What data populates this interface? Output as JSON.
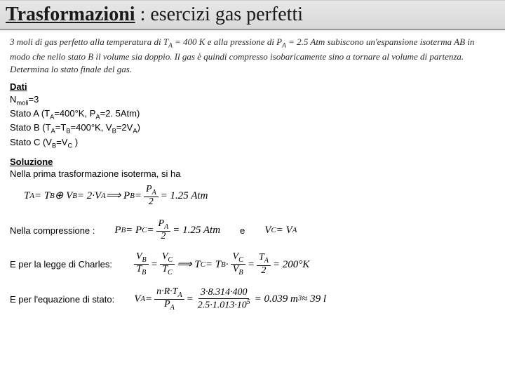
{
  "title": {
    "bold": "Trasformazioni",
    "rest": " : esercizi gas perfetti"
  },
  "problem": {
    "line1": "3 moli di gas perfetto alla temperatura di T",
    "sub1": "A",
    "line2": " = 400 K e alla pressione di P",
    "sub2": "A",
    "line3": " = 2.5 Atm subiscono un'espansione isoterma AB in modo che nello stato B il volume sia doppio. Il gas è quindi compresso isobaricamente sino a tornare al volume di partenza. Determina lo stato finale del gas."
  },
  "dati": {
    "label": "Dati",
    "nmoli_pre": "N",
    "nmoli_sub": "moli",
    "nmoli_val": "=3",
    "statoA_pre": "Stato A (T",
    "statoA_sub1": "A",
    "statoA_mid": "=400°K, P",
    "statoA_sub2": "A",
    "statoA_end": "=2. 5Atm)",
    "statoB_pre": "Stato B (T",
    "statoB_sub1": "A",
    "statoB_mid1": "=T",
    "statoB_sub2": "B",
    "statoB_mid2": "=400°K, V",
    "statoB_sub3": "B",
    "statoB_mid3": "=2V",
    "statoB_sub4": "A",
    "statoB_end": ")",
    "statoC_pre": "Stato C (V",
    "statoC_sub1": "B",
    "statoC_mid": "=V",
    "statoC_sub2": "C",
    "statoC_end": " )"
  },
  "soluzione": {
    "label": "Soluzione",
    "line1": "Nella prima trasformazione isoterma, si ha",
    "eq1_a": "T",
    "eq1_a_sub": "A",
    "eq1_b": " = T",
    "eq1_b_sub": "B",
    "eq1_c": "  ⊕  V",
    "eq1_c_sub": "B",
    "eq1_d": " = 2·V",
    "eq1_d_sub": "A",
    "eq1_arrow": "  ⟹  P",
    "eq1_e_sub": "B",
    "eq1_eq": " = ",
    "eq1_num": "P",
    "eq1_num_sub": "A",
    "eq1_den": "2",
    "eq1_res": " = 1.25 Atm",
    "compressione": "Nella compressione :",
    "eq2_a": "P",
    "eq2_a_sub": "B",
    "eq2_b": " = P",
    "eq2_b_sub": "C",
    "eq2_c": " = ",
    "eq2_num": "P",
    "eq2_num_sub": "A",
    "eq2_den": "2",
    "eq2_res": " = 1.25 Atm",
    "e_label": "e",
    "eq3_a": "V",
    "eq3_a_sub": "C",
    "eq3_b": " = V",
    "eq3_b_sub": "A",
    "charles": "E per la legge di Charles:",
    "eq4_num1": "V",
    "eq4_num1_sub": "B",
    "eq4_den1": "T",
    "eq4_den1_sub": "B",
    "eq4_eq1": " = ",
    "eq4_num2": "V",
    "eq4_num2_sub": "C",
    "eq4_den2": "T",
    "eq4_den2_sub": "C",
    "eq4_arrow": "  ⟹  T",
    "eq4_tc_sub": "C",
    "eq4_mid": " = T",
    "eq4_tb_sub": "B",
    "eq4_dot": "·",
    "eq4_num3": "V",
    "eq4_num3_sub": "C",
    "eq4_den3": "V",
    "eq4_den3_sub": "B",
    "eq4_eq2": " = ",
    "eq4_num4": "T",
    "eq4_num4_sub": "A",
    "eq4_den4": "2",
    "eq4_res": " = 200°K",
    "stato": "E per l'equazione di stato:",
    "eq5_a": "V",
    "eq5_a_sub": "A",
    "eq5_eq": " = ",
    "eq5_num1": "n·R·T",
    "eq5_num1_sub": "A",
    "eq5_den1": "P",
    "eq5_den1_sub": "A",
    "eq5_eq2": " = ",
    "eq5_num2": "3·8.314·400",
    "eq5_den2": "2.5·1.013·10",
    "eq5_den2_sup": "5",
    "eq5_res": " = 0.039 m",
    "eq5_sup": "3",
    "eq5_res2": " ≈ 39 l"
  }
}
